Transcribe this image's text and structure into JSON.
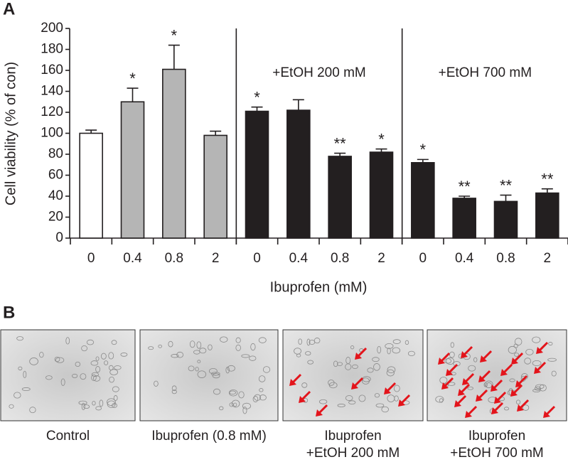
{
  "panel_labels": [
    "A",
    "B"
  ],
  "chart_data": {
    "type": "bar",
    "y_label": "Cell viability (% of con)",
    "x_label": "Ibuprofen (mM)",
    "categories": [
      "0",
      "0.4",
      "0.8",
      "2",
      "0",
      "0.4",
      "0.8",
      "2",
      "0",
      "0.4",
      "0.8",
      "2"
    ],
    "values": [
      100,
      130,
      161,
      98,
      121,
      122,
      78,
      82,
      72,
      38,
      35,
      43
    ],
    "errors": [
      3,
      13,
      23,
      4,
      4,
      10,
      3,
      3,
      3,
      2,
      6,
      4
    ],
    "significance": [
      null,
      "*",
      "*",
      null,
      "*",
      null,
      "**",
      "*",
      "*",
      "**",
      "**",
      "**"
    ],
    "colors": [
      "#ffffff",
      "#b5b5b5",
      "#b5b5b5",
      "#b5b5b5",
      "#231f20",
      "#231f20",
      "#231f20",
      "#231f20",
      "#231f20",
      "#231f20",
      "#231f20",
      "#231f20"
    ],
    "group_labels": [
      "+EtOH 200 mM",
      "+EtOH 700 mM"
    ],
    "ylim": [
      0,
      200
    ],
    "yticks": [
      0,
      20,
      40,
      60,
      80,
      100,
      120,
      140,
      160,
      180,
      200
    ]
  },
  "images": [
    {
      "caption": [
        "Control"
      ]
    },
    {
      "caption": [
        "Ibuprofen (0.8 mM)"
      ]
    },
    {
      "caption": [
        "Ibuprofen",
        "+EtOH 200 mM"
      ]
    },
    {
      "caption": [
        "Ibuprofen",
        "+EtOH 700 mM"
      ]
    }
  ]
}
